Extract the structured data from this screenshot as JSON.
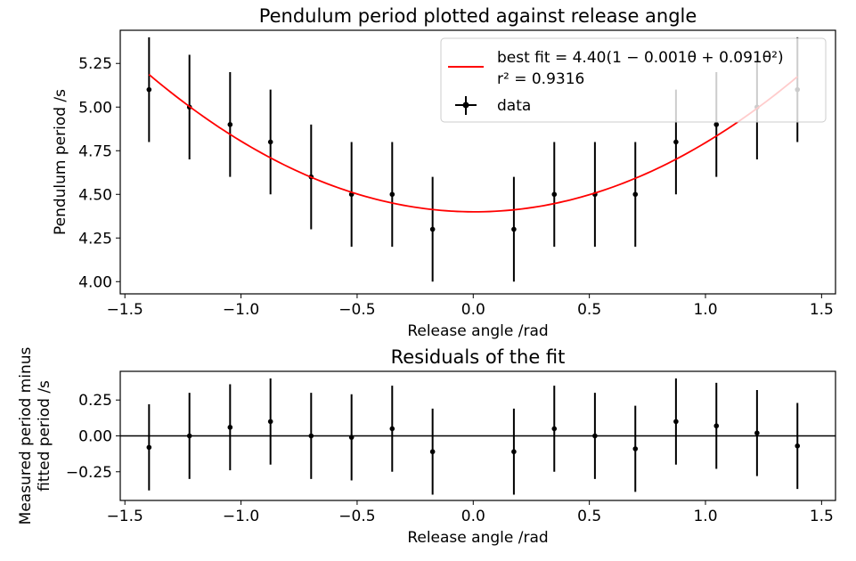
{
  "figure": {
    "charts": [
      "top",
      "bottom"
    ]
  },
  "chart_data": [
    {
      "id": "top",
      "type": "scatter",
      "title": "Pendulum period plotted against release angle",
      "xlabel": "Release angle /rad",
      "ylabel": "Pendulum period /s",
      "xlim": [
        -1.52,
        1.56
      ],
      "ylim": [
        3.93,
        5.44
      ],
      "xticks": [
        -1.5,
        -1.0,
        -0.5,
        0.0,
        0.5,
        1.0,
        1.5
      ],
      "xtick_labels": [
        "−1.5",
        "−1.0",
        "−0.5",
        "0.0",
        "0.5",
        "1.0",
        "1.5"
      ],
      "yticks": [
        4.0,
        4.25,
        4.5,
        4.75,
        5.0,
        5.25
      ],
      "ytick_labels": [
        "4.00",
        "4.25",
        "4.50",
        "4.75",
        "5.00",
        "5.25"
      ],
      "grid": false,
      "legend": {
        "placement": "upper-right",
        "entries": [
          {
            "series": "fit",
            "label": "best fit = 4.40(1 − 0.001θ + 0.091θ²)",
            "label2": "r² = 0.9316"
          },
          {
            "series": "data",
            "label": "data"
          }
        ]
      },
      "series": [
        {
          "name": "data",
          "kind": "errorbar",
          "color": "#000000",
          "x": [
            -1.396,
            -1.222,
            -1.047,
            -0.873,
            -0.698,
            -0.524,
            -0.349,
            -0.175,
            0.175,
            0.349,
            0.524,
            0.698,
            0.873,
            1.047,
            1.222,
            1.396
          ],
          "y": [
            5.1,
            5.0,
            4.9,
            4.8,
            4.6,
            4.5,
            4.5,
            4.3,
            4.3,
            4.5,
            4.5,
            4.5,
            4.8,
            4.9,
            5.0,
            5.1
          ],
          "yerr": 0.3
        },
        {
          "name": "fit",
          "kind": "line",
          "color": "#ff0000",
          "equation": {
            "a": 4.4,
            "b": -0.001,
            "c": 0.091
          },
          "x_range": [
            -1.396,
            1.396
          ]
        }
      ]
    },
    {
      "id": "bottom",
      "type": "scatter",
      "title": "Residuals of the fit",
      "xlabel": "Release angle /rad",
      "ylabel": "Measured period minus\nfitted period /s",
      "xlim": [
        -1.52,
        1.56
      ],
      "ylim": [
        -0.45,
        0.45
      ],
      "xticks": [
        -1.5,
        -1.0,
        -0.5,
        0.0,
        0.5,
        1.0,
        1.5
      ],
      "xtick_labels": [
        "−1.5",
        "−1.0",
        "−0.5",
        "0.0",
        "0.5",
        "1.0",
        "1.5"
      ],
      "yticks": [
        -0.25,
        0.0,
        0.25
      ],
      "ytick_labels": [
        "−0.25",
        "0.00",
        "0.25"
      ],
      "grid": false,
      "zero_line": true,
      "series": [
        {
          "name": "residuals",
          "kind": "errorbar",
          "color": "#000000",
          "x": [
            -1.396,
            -1.222,
            -1.047,
            -0.873,
            -0.698,
            -0.524,
            -0.349,
            -0.175,
            0.175,
            0.349,
            0.524,
            0.698,
            0.873,
            1.047,
            1.222,
            1.396
          ],
          "y": [
            -0.08,
            0.0,
            0.06,
            0.1,
            0.0,
            -0.01,
            0.05,
            -0.11,
            -0.11,
            0.05,
            0.0,
            -0.09,
            0.1,
            0.07,
            0.02,
            -0.07
          ],
          "yerr": 0.3
        }
      ]
    }
  ]
}
